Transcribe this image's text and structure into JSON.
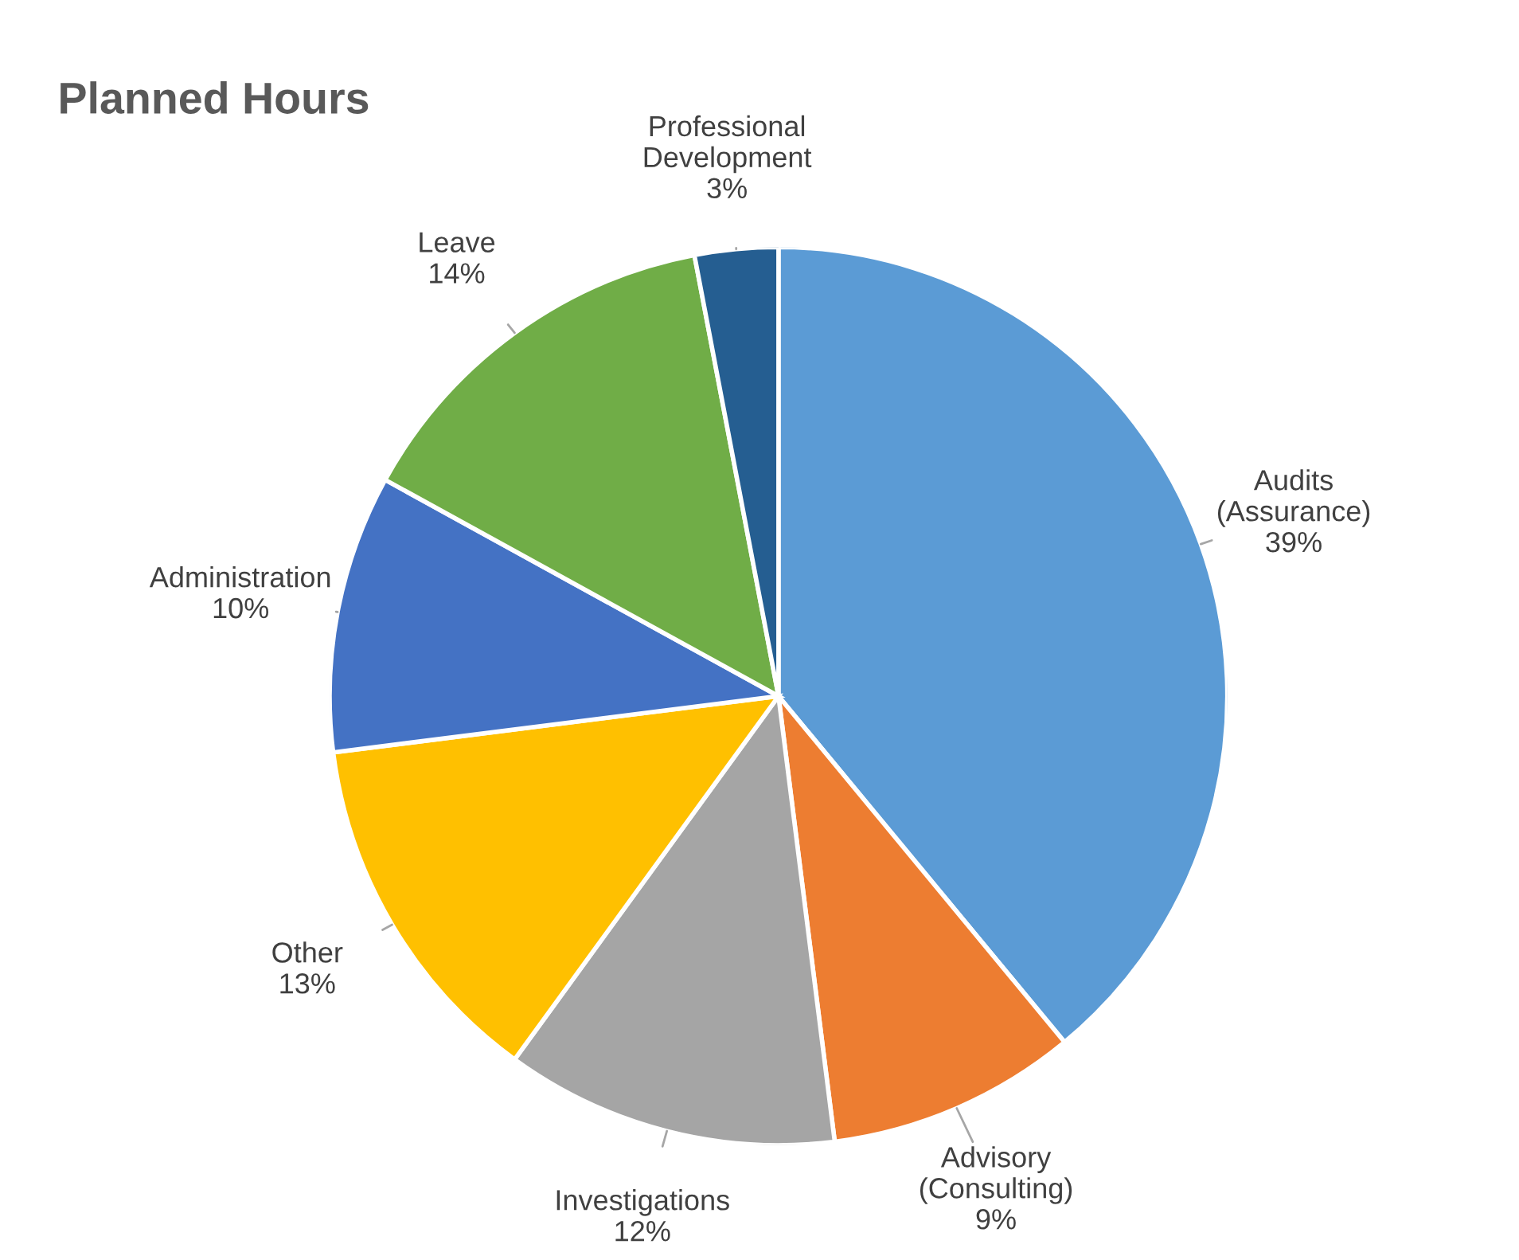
{
  "chart_data": {
    "type": "pie",
    "title": "Planned Hours",
    "categories": [
      "Audits (Assurance)",
      "Advisory (Consulting)",
      "Investigations",
      "Other",
      "Administration",
      "Leave",
      "Professional Development"
    ],
    "values": [
      39,
      9,
      12,
      13,
      10,
      14,
      3
    ],
    "value_labels": [
      "39%",
      "9%",
      "12%",
      "13%",
      "10%",
      "14%",
      "3%"
    ],
    "colors": [
      "#5b9bd5",
      "#ed7d31",
      "#a5a5a5",
      "#ffc000",
      "#4472c4",
      "#70ad47",
      "#255e91"
    ],
    "legend": false
  }
}
